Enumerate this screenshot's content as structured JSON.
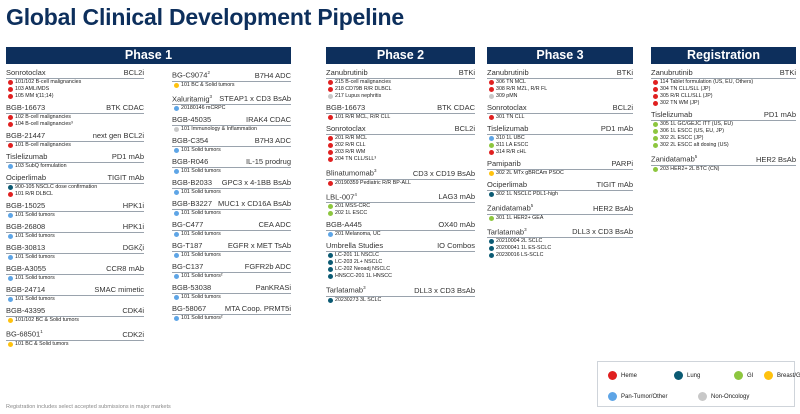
{
  "page": {
    "title": "Global Clinical Development Pipeline",
    "footnote": "Registration includes select accepted submissions in major markets"
  },
  "colors": {
    "heme": "#e02020",
    "lung": "#0b5a73",
    "gi": "#8dc63f",
    "breast": "#ffc20e",
    "pantumor": "#5ea5e6",
    "nononc": "#c8c8c8"
  },
  "legend": [
    {
      "label": "Heme",
      "color": "heme"
    },
    {
      "label": "Lung",
      "color": "lung"
    },
    {
      "label": "GI",
      "color": "gi"
    },
    {
      "label": "Breast/Gyn",
      "color": "breast"
    },
    {
      "label": "Pan-Tumor/Other",
      "color": "pantumor"
    },
    {
      "label": "Non-Oncology",
      "color": "nononc"
    }
  ],
  "phases": [
    {
      "label": "Phase 1",
      "columns": [
        [
          {
            "name": "Sonrotoclax",
            "sup": "",
            "mech": "BCL2i",
            "ind": [
              {
                "c": "heme",
                "t": "101/102 B-cell malignancies"
              },
              {
                "c": "heme",
                "t": "103 AML/MDS"
              },
              {
                "c": "heme",
                "t": "105 MM t(11;14)"
              }
            ]
          },
          {
            "name": "BGB-16673",
            "sup": "",
            "mech": "BTK CDAC",
            "ind": [
              {
                "c": "heme",
                "t": "102 B-cell malignancies"
              },
              {
                "c": "heme",
                "t": "104 B-cell malignancies³"
              }
            ]
          },
          {
            "name": "BGB-21447",
            "sup": "",
            "mech": "next gen BCL2i",
            "ind": [
              {
                "c": "heme",
                "t": "101 B-cell malignancies"
              }
            ]
          },
          {
            "name": "Tislelizumab",
            "sup": "",
            "mech": "PD1 mAb",
            "ind": [
              {
                "c": "pantumor",
                "t": "103 SubQ formulation"
              }
            ]
          },
          {
            "name": "Ociperlimab",
            "sup": "",
            "mech": "TIGIT mAb",
            "ind": [
              {
                "c": "lung",
                "t": "900-105 NSCLC dose confirmation"
              },
              {
                "c": "heme",
                "t": "101 R/R DLBCL"
              }
            ]
          },
          {
            "name": "BGB-15025",
            "sup": "",
            "mech": "HPK1i",
            "ind": [
              {
                "c": "pantumor",
                "t": "101 Solid tumors"
              }
            ]
          },
          {
            "name": "BGB-26808",
            "sup": "",
            "mech": "HPK1i",
            "ind": [
              {
                "c": "pantumor",
                "t": "101 Solid tumors"
              }
            ]
          },
          {
            "name": "BGB-30813",
            "sup": "",
            "mech": "DGKζi",
            "ind": [
              {
                "c": "pantumor",
                "t": "101 Solid tumors"
              }
            ]
          },
          {
            "name": "BGB-A3055",
            "sup": "",
            "mech": "CCR8 mAb",
            "ind": [
              {
                "c": "pantumor",
                "t": "101 Solid tumors"
              }
            ]
          },
          {
            "name": "BGB-24714",
            "sup": "",
            "mech": "SMAC mimetic",
            "ind": [
              {
                "c": "pantumor",
                "t": "101 Solid tumors"
              }
            ]
          },
          {
            "name": "BGB-43395",
            "sup": "",
            "mech": "CDK4i",
            "ind": [
              {
                "c": "breast",
                "t": "101/102 BC & Solid tumors"
              }
            ]
          },
          {
            "name": "BG-68501",
            "sup": "1",
            "mech": "CDK2i",
            "ind": [
              {
                "c": "breast",
                "t": "101 BC & Solid tumors"
              }
            ]
          }
        ],
        [
          {
            "name": "BG-C9074",
            "sup": "2",
            "mech": "B7H4 ADC",
            "ind": [
              {
                "c": "breast",
                "t": "101 BC & Solid tumors"
              }
            ]
          },
          {
            "name": "Xaluritamig",
            "sup": "3",
            "mech": "STEAP1 x CD3 BsAb",
            "ind": [
              {
                "c": "pantumor",
                "t": "20180146 mCRPC"
              }
            ]
          },
          {
            "name": "BGB-45035",
            "sup": "",
            "mech": "IRAK4 CDAC",
            "ind": [
              {
                "c": "nononc",
                "t": "101 Immunology & Inflammation"
              }
            ]
          },
          {
            "name": "BGB-C354",
            "sup": "",
            "mech": "B7H3 ADC",
            "ind": [
              {
                "c": "pantumor",
                "t": "101 Solid tumors"
              }
            ]
          },
          {
            "name": "BGB-R046",
            "sup": "",
            "mech": "IL-15 prodrug",
            "ind": [
              {
                "c": "pantumor",
                "t": "101 Solid tumors"
              }
            ]
          },
          {
            "name": "BGB-B2033",
            "sup": "",
            "mech": "GPC3 x 4-1BB BsAb",
            "ind": [
              {
                "c": "pantumor",
                "t": "101 Solid tumors"
              }
            ]
          },
          {
            "name": "BGB-B3227",
            "sup": "",
            "mech": "MUC1 x CD16A BsAb",
            "ind": [
              {
                "c": "pantumor",
                "t": "101 Solid tumors"
              }
            ]
          },
          {
            "name": "BG-C477",
            "sup": "",
            "mech": "CEA ADC",
            "ind": [
              {
                "c": "pantumor",
                "t": "101 Solid tumors"
              }
            ]
          },
          {
            "name": "BG-T187",
            "sup": "",
            "mech": "EGFR x MET TsAb",
            "ind": [
              {
                "c": "pantumor",
                "t": "101 Solid tumors"
              }
            ]
          },
          {
            "name": "BG-C137",
            "sup": "",
            "mech": "FGFR2b ADC",
            "ind": [
              {
                "c": "pantumor",
                "t": "101 Solid tumors²"
              }
            ]
          },
          {
            "name": "BGB-53038",
            "sup": "",
            "mech": "PanKRASi",
            "ind": [
              {
                "c": "pantumor",
                "t": "101 Solid tumors"
              }
            ]
          },
          {
            "name": "BG-58067",
            "sup": "",
            "mech": "MTA Coop. PRMT5i",
            "ind": [
              {
                "c": "pantumor",
                "t": "101 Solid tumors²"
              }
            ]
          }
        ]
      ]
    },
    {
      "label": "Phase 2",
      "columns": [
        [
          {
            "name": "Zanubrutinib",
            "sup": "",
            "mech": "BTKi",
            "ind": [
              {
                "c": "heme",
                "t": "215 B-cell malignancies"
              },
              {
                "c": "heme",
                "t": "218 CD79B R/R DLBCL"
              },
              {
                "c": "nononc",
                "t": "217 Lupus nephritis"
              }
            ]
          },
          {
            "name": "BGB-16673",
            "sup": "",
            "mech": "BTK CDAC",
            "ind": [
              {
                "c": "heme",
                "t": "101 R/R MCL, R/R CLL"
              }
            ]
          },
          {
            "name": "Sonrotoclax",
            "sup": "",
            "mech": "BCL2i",
            "ind": [
              {
                "c": "heme",
                "t": "201 R/R MCL"
              },
              {
                "c": "heme",
                "t": "202 R/R CLL"
              },
              {
                "c": "heme",
                "t": "203 R/R WM"
              },
              {
                "c": "heme",
                "t": "204 TN CLL/SLL³"
              }
            ]
          },
          {
            "name": "Blinatumomab",
            "sup": "3",
            "mech": "CD3 x CD19 BsAb",
            "ind": [
              {
                "c": "heme",
                "t": "20190359 Pediatric R/R BP-ALL"
              }
            ]
          },
          {
            "name": "LBL-007",
            "sup": "4",
            "mech": "LAG3 mAb",
            "ind": [
              {
                "c": "gi",
                "t": "201 MSS-CRC"
              },
              {
                "c": "gi",
                "t": "202 1L ESCC"
              }
            ]
          },
          {
            "name": "BGB-A445",
            "sup": "",
            "mech": "OX40 mAb",
            "ind": [
              {
                "c": "pantumor",
                "t": "201 Melanoma, UC"
              }
            ]
          },
          {
            "name": "Umbrella Studies",
            "sup": "",
            "mech": "IO Combos",
            "ind": [
              {
                "c": "lung",
                "t": "LC-201 1L NSCLC"
              },
              {
                "c": "lung",
                "t": "LC-203 2L+ NSCLC"
              },
              {
                "c": "lung",
                "t": "LC-202 Neoadj NSCLC"
              },
              {
                "c": "lung",
                "t": "HNSCC-201 1L HNSCC"
              }
            ]
          },
          {
            "name": "Tarlatamab",
            "sup": "3",
            "mech": "DLL3 x CD3 BsAb",
            "ind": [
              {
                "c": "lung",
                "t": "20230273 3L SCLC"
              }
            ]
          }
        ]
      ]
    },
    {
      "label": "Phase 3",
      "columns": [
        [
          {
            "name": "Zanubrutinib",
            "sup": "",
            "mech": "BTKi",
            "ind": [
              {
                "c": "heme",
                "t": "306 TN MCL"
              },
              {
                "c": "heme",
                "t": "308 R/R MZL, R/R FL"
              },
              {
                "c": "nononc",
                "t": "309 pMN"
              }
            ]
          },
          {
            "name": "Sonrotoclax",
            "sup": "",
            "mech": "BCL2i",
            "ind": [
              {
                "c": "heme",
                "t": "301 TN CLL"
              }
            ]
          },
          {
            "name": "Tislelizumab",
            "sup": "",
            "mech": "PD1 mAb",
            "ind": [
              {
                "c": "pantumor",
                "t": "310 1L UBC"
              },
              {
                "c": "gi",
                "t": "311 LA ESCC"
              },
              {
                "c": "heme",
                "t": "314 R/R cHL"
              }
            ]
          },
          {
            "name": "Pamiparib",
            "sup": "",
            "mech": "PARPi",
            "ind": [
              {
                "c": "breast",
                "t": "302 2L MTx gBRCAm PSOC"
              }
            ]
          },
          {
            "name": "Ociperlimab",
            "sup": "",
            "mech": "TIGIT mAb",
            "ind": [
              {
                "c": "lung",
                "t": "302 1L NSCLC PDL1-high"
              }
            ]
          },
          {
            "name": "Zanidatamab",
            "sup": "5",
            "mech": "HER2 BsAb",
            "ind": [
              {
                "c": "gi",
                "t": "301 1L HER2+ GEA"
              }
            ]
          },
          {
            "name": "Tarlatamab",
            "sup": "3",
            "mech": "DLL3 x CD3 BsAb",
            "ind": [
              {
                "c": "lung",
                "t": "20210004 2L SCLC"
              },
              {
                "c": "lung",
                "t": "20200041 1L ES-SCLC"
              },
              {
                "c": "lung",
                "t": "20230016 LS-SCLC"
              }
            ]
          }
        ]
      ]
    },
    {
      "label": "Registration",
      "columns": [
        [
          {
            "name": "Zanubrutinib",
            "sup": "",
            "mech": "BTKi",
            "ind": [
              {
                "c": "heme",
                "t": "114 Tablet formulation (US, EU, Others)"
              },
              {
                "c": "heme",
                "t": "304 TN CLL/SLL (JP)"
              },
              {
                "c": "heme",
                "t": "305 R/R CLL/SLL (JP)"
              },
              {
                "c": "heme",
                "t": "302 TN WM (JP)"
              }
            ]
          },
          {
            "name": "Tislelizumab",
            "sup": "",
            "mech": "PD1 mAb",
            "ind": [
              {
                "c": "gi",
                "t": "305 1L GC/GEJC ITT (US, EU)"
              },
              {
                "c": "gi",
                "t": "306 1L ESCC (US, EU, JP)"
              },
              {
                "c": "gi",
                "t": "302 2L ESCC (JP)"
              },
              {
                "c": "gi",
                "t": "302 2L ESCC alt dosing (US)"
              }
            ]
          },
          {
            "name": "Zanidatamab",
            "sup": "5",
            "mech": "HER2 BsAb",
            "ind": [
              {
                "c": "gi",
                "t": "203 HER2+ 2L BTC (CN)"
              }
            ]
          }
        ]
      ]
    }
  ]
}
